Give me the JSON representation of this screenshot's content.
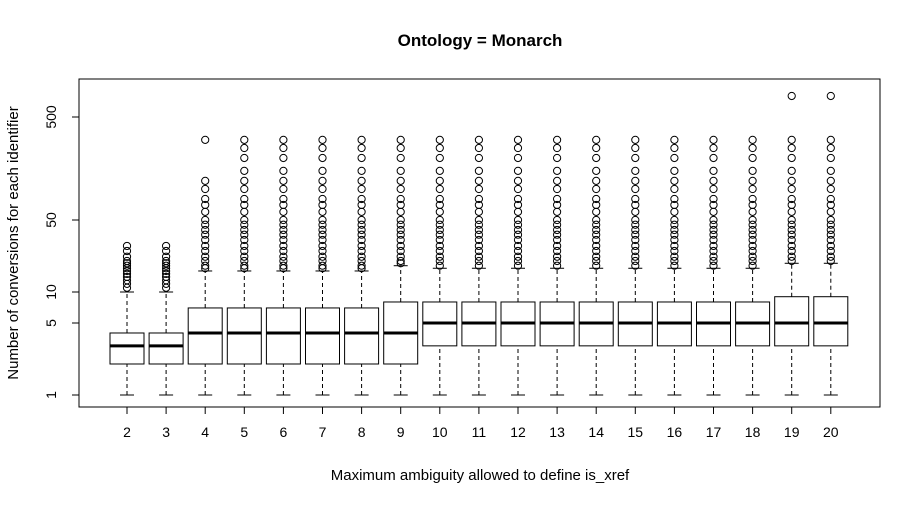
{
  "chart_data": {
    "type": "boxplot",
    "title": "Ontology = Monarch",
    "xlabel": "Maximum ambiguity allowed to define is_xref",
    "ylabel": "Number of conversions for each identifier",
    "y_scale": "log",
    "ylim": [
      0.8,
      1000
    ],
    "y_ticks": [
      1,
      5,
      10,
      50,
      500
    ],
    "categories": [
      "2",
      "3",
      "4",
      "5",
      "6",
      "7",
      "8",
      "9",
      "10",
      "11",
      "12",
      "13",
      "14",
      "15",
      "16",
      "17",
      "18",
      "19",
      "20"
    ],
    "boxes": [
      {
        "min": 1,
        "q1": 2,
        "median": 3,
        "q3": 4,
        "whisker_hi": 10,
        "outliers": [
          11,
          12,
          13,
          14,
          15,
          16,
          17,
          18,
          19,
          20,
          22,
          25,
          28
        ]
      },
      {
        "min": 1,
        "q1": 2,
        "median": 3,
        "q3": 4,
        "whisker_hi": 10,
        "outliers": [
          11,
          12,
          13,
          14,
          15,
          16,
          17,
          18,
          19,
          20,
          22,
          25,
          28
        ]
      },
      {
        "min": 1,
        "q1": 2,
        "median": 4,
        "q3": 7,
        "whisker_hi": 16,
        "outliers": [
          17,
          18,
          20,
          22,
          25,
          28,
          32,
          36,
          40,
          45,
          50,
          60,
          70,
          80,
          100,
          120,
          300
        ]
      },
      {
        "min": 1,
        "q1": 2,
        "median": 4,
        "q3": 7,
        "whisker_hi": 16,
        "outliers": [
          17,
          18,
          20,
          22,
          25,
          28,
          32,
          36,
          40,
          45,
          50,
          60,
          70,
          80,
          100,
          120,
          150,
          200,
          250,
          300
        ]
      },
      {
        "min": 1,
        "q1": 2,
        "median": 4,
        "q3": 7,
        "whisker_hi": 16,
        "outliers": [
          17,
          18,
          20,
          22,
          25,
          28,
          32,
          36,
          40,
          45,
          50,
          60,
          70,
          80,
          100,
          120,
          150,
          200,
          250,
          300
        ]
      },
      {
        "min": 1,
        "q1": 2,
        "median": 4,
        "q3": 7,
        "whisker_hi": 16,
        "outliers": [
          17,
          18,
          20,
          22,
          25,
          28,
          32,
          36,
          40,
          45,
          50,
          60,
          70,
          80,
          100,
          120,
          150,
          200,
          250,
          300
        ]
      },
      {
        "min": 1,
        "q1": 2,
        "median": 4,
        "q3": 7,
        "whisker_hi": 16,
        "outliers": [
          17,
          18,
          20,
          22,
          25,
          28,
          32,
          36,
          40,
          45,
          50,
          60,
          70,
          80,
          100,
          120,
          150,
          200,
          250,
          300
        ]
      },
      {
        "min": 1,
        "q1": 2,
        "median": 4,
        "q3": 8,
        "whisker_hi": 18,
        "outliers": [
          19,
          20,
          22,
          25,
          28,
          32,
          36,
          40,
          45,
          50,
          60,
          70,
          80,
          100,
          120,
          150,
          200,
          250,
          300
        ]
      },
      {
        "min": 1,
        "q1": 3,
        "median": 5,
        "q3": 8,
        "whisker_hi": 17,
        "outliers": [
          18,
          20,
          22,
          25,
          28,
          32,
          36,
          40,
          45,
          50,
          60,
          70,
          80,
          100,
          120,
          150,
          200,
          250,
          300
        ]
      },
      {
        "min": 1,
        "q1": 3,
        "median": 5,
        "q3": 8,
        "whisker_hi": 17,
        "outliers": [
          18,
          20,
          22,
          25,
          28,
          32,
          36,
          40,
          45,
          50,
          60,
          70,
          80,
          100,
          120,
          150,
          200,
          250,
          300
        ]
      },
      {
        "min": 1,
        "q1": 3,
        "median": 5,
        "q3": 8,
        "whisker_hi": 17,
        "outliers": [
          18,
          20,
          22,
          25,
          28,
          32,
          36,
          40,
          45,
          50,
          60,
          70,
          80,
          100,
          120,
          150,
          200,
          250,
          300
        ]
      },
      {
        "min": 1,
        "q1": 3,
        "median": 5,
        "q3": 8,
        "whisker_hi": 17,
        "outliers": [
          18,
          20,
          22,
          25,
          28,
          32,
          36,
          40,
          45,
          50,
          60,
          70,
          80,
          100,
          120,
          150,
          200,
          250,
          300
        ]
      },
      {
        "min": 1,
        "q1": 3,
        "median": 5,
        "q3": 8,
        "whisker_hi": 17,
        "outliers": [
          18,
          20,
          22,
          25,
          28,
          32,
          36,
          40,
          45,
          50,
          60,
          70,
          80,
          100,
          120,
          150,
          200,
          250,
          300
        ]
      },
      {
        "min": 1,
        "q1": 3,
        "median": 5,
        "q3": 8,
        "whisker_hi": 17,
        "outliers": [
          18,
          20,
          22,
          25,
          28,
          32,
          36,
          40,
          45,
          50,
          60,
          70,
          80,
          100,
          120,
          150,
          200,
          250,
          300
        ]
      },
      {
        "min": 1,
        "q1": 3,
        "median": 5,
        "q3": 8,
        "whisker_hi": 17,
        "outliers": [
          18,
          20,
          22,
          25,
          28,
          32,
          36,
          40,
          45,
          50,
          60,
          70,
          80,
          100,
          120,
          150,
          200,
          250,
          300
        ]
      },
      {
        "min": 1,
        "q1": 3,
        "median": 5,
        "q3": 8,
        "whisker_hi": 17,
        "outliers": [
          18,
          20,
          22,
          25,
          28,
          32,
          36,
          40,
          45,
          50,
          60,
          70,
          80,
          100,
          120,
          150,
          200,
          250,
          300
        ]
      },
      {
        "min": 1,
        "q1": 3,
        "median": 5,
        "q3": 8,
        "whisker_hi": 17,
        "outliers": [
          18,
          20,
          22,
          25,
          28,
          32,
          36,
          40,
          45,
          50,
          60,
          70,
          80,
          100,
          120,
          150,
          200,
          250,
          300
        ]
      },
      {
        "min": 1,
        "q1": 3,
        "median": 5,
        "q3": 9,
        "whisker_hi": 19,
        "outliers": [
          20,
          22,
          25,
          28,
          32,
          36,
          40,
          45,
          50,
          60,
          70,
          80,
          100,
          120,
          150,
          200,
          250,
          300,
          800
        ]
      },
      {
        "min": 1,
        "q1": 3,
        "median": 5,
        "q3": 9,
        "whisker_hi": 19,
        "outliers": [
          20,
          22,
          25,
          28,
          32,
          36,
          40,
          45,
          50,
          60,
          70,
          80,
          100,
          120,
          150,
          200,
          250,
          300,
          800
        ]
      }
    ],
    "grid": false,
    "legend": "none"
  }
}
